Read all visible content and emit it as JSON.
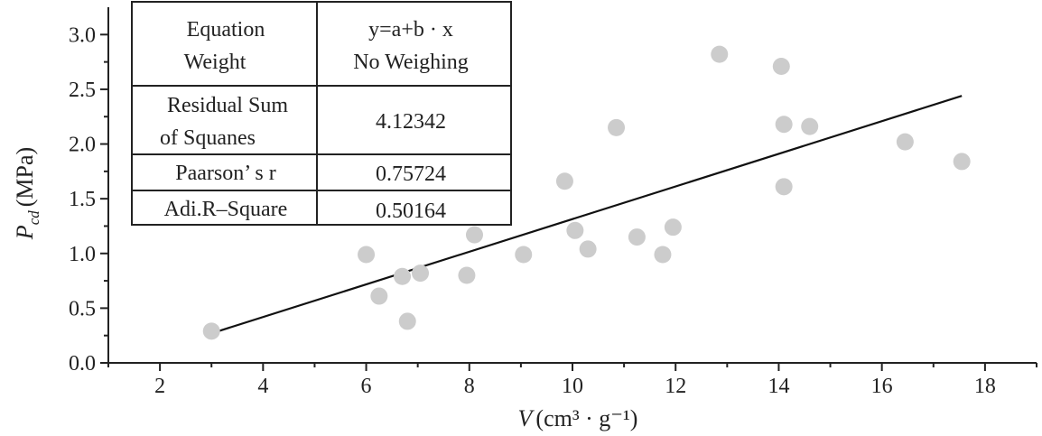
{
  "chart_data": {
    "type": "scatter",
    "xlabel": {
      "var": "V",
      "unit": "(cm³ · g⁻¹)"
    },
    "ylabel": {
      "var": "P",
      "sub": "cd",
      "unit": "(MPa)"
    },
    "xlim": [
      1,
      19
    ],
    "ylim": [
      0,
      3.25
    ],
    "x_ticks": [
      "2",
      "4",
      "6",
      "8",
      "10",
      "12",
      "14",
      "16",
      "18"
    ],
    "y_ticks": [
      "0.0",
      "0.5",
      "1.0",
      "1.5",
      "2.0",
      "2.5",
      "3.0"
    ],
    "points": [
      {
        "x": 3.0,
        "y": 0.29
      },
      {
        "x": 6.0,
        "y": 0.99
      },
      {
        "x": 6.25,
        "y": 0.61
      },
      {
        "x": 6.7,
        "y": 0.79
      },
      {
        "x": 6.8,
        "y": 0.38
      },
      {
        "x": 7.05,
        "y": 0.82
      },
      {
        "x": 7.95,
        "y": 0.8
      },
      {
        "x": 8.1,
        "y": 1.17
      },
      {
        "x": 9.05,
        "y": 0.99
      },
      {
        "x": 9.85,
        "y": 1.66
      },
      {
        "x": 10.05,
        "y": 1.21
      },
      {
        "x": 10.3,
        "y": 1.04
      },
      {
        "x": 10.85,
        "y": 2.15
      },
      {
        "x": 11.25,
        "y": 1.15
      },
      {
        "x": 11.75,
        "y": 0.99
      },
      {
        "x": 11.95,
        "y": 1.24
      },
      {
        "x": 12.85,
        "y": 2.82
      },
      {
        "x": 14.05,
        "y": 2.71
      },
      {
        "x": 14.1,
        "y": 2.18
      },
      {
        "x": 14.1,
        "y": 1.61
      },
      {
        "x": 14.6,
        "y": 2.16
      },
      {
        "x": 16.45,
        "y": 2.02
      },
      {
        "x": 17.55,
        "y": 1.84
      }
    ],
    "fit_line": {
      "x": [
        3.0,
        17.55
      ],
      "y": [
        0.27,
        2.44
      ]
    },
    "colors": {
      "points": "#cccccc",
      "line": "#111111",
      "axis": "#222222"
    },
    "grid": false,
    "stats_table": {
      "position": "top-left",
      "rows": [
        {
          "label": [
            "Equation",
            "Weight"
          ],
          "value": [
            "y=a+b · x",
            "No Weighing"
          ]
        },
        {
          "label": [
            "Residual Sum",
            "of Squanes"
          ],
          "value": [
            "4.12342"
          ]
        },
        {
          "label": [
            "Paarson’ s r"
          ],
          "value": [
            "0.75724"
          ]
        },
        {
          "label": [
            "Adi.R–Square"
          ],
          "value": [
            "0.50164"
          ]
        }
      ]
    }
  }
}
